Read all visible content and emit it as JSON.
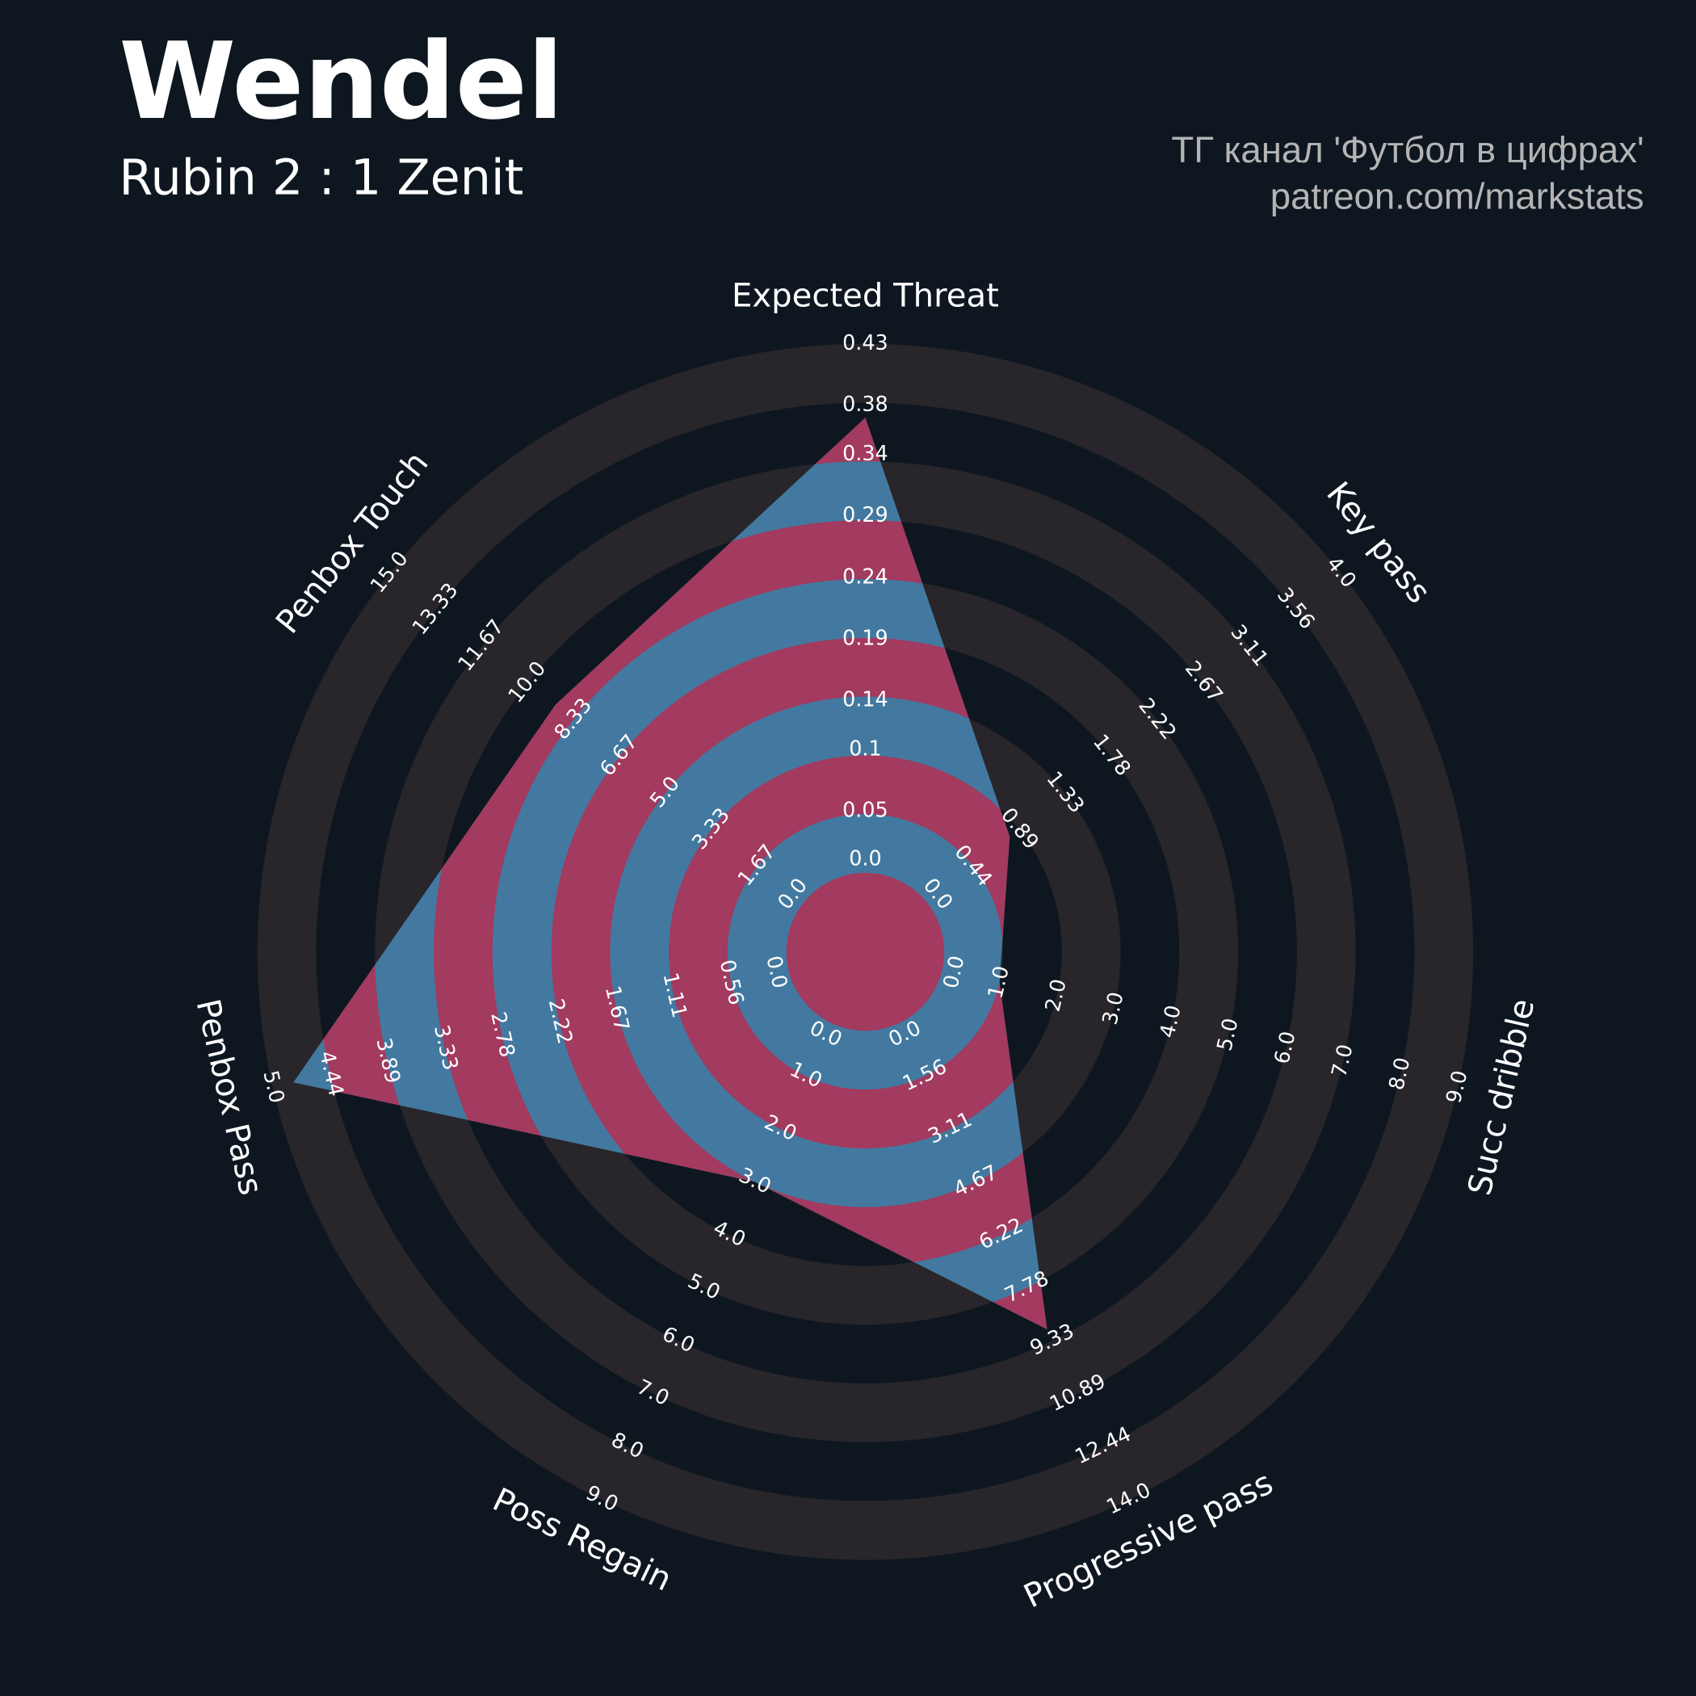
{
  "chart_data": {
    "type": "radar",
    "title": "Wendel",
    "subtitle": "Rubin 2 : 1 Zenit",
    "annotations": [
      "ТГ канал 'Футбол в цифрах'",
      "patreon.com/markstats"
    ],
    "categories": [
      "Expected Threat",
      "Key pass",
      "Succ dribble",
      "Progressive pass",
      "Poss Regain",
      "Penbox Pass",
      "Penbox Touch"
    ],
    "values": [
      0.37,
      0.8,
      1,
      9,
      3,
      4.8,
      9
    ],
    "ranges": [
      [
        0,
        0.43
      ],
      [
        0,
        4
      ],
      [
        0,
        9
      ],
      [
        0,
        14
      ],
      [
        0,
        9
      ],
      [
        0,
        5
      ],
      [
        0,
        15
      ]
    ],
    "ticks": [
      [
        {
          "value": 0,
          "label": "0.0"
        },
        0.05,
        0.1,
        0.14,
        0.19,
        0.24,
        0.29,
        0.34,
        0.38,
        0.43
      ],
      [
        {
          "value": 0,
          "label": "0.0"
        },
        0.44,
        0.89,
        1.33,
        1.78,
        2.22,
        2.67,
        3.11,
        3.56,
        {
          "value": 4,
          "label": "4.0"
        }
      ],
      [
        {
          "value": 0,
          "label": "0.0"
        },
        {
          "value": 1,
          "label": "1.0"
        },
        {
          "value": 2,
          "label": "2.0"
        },
        {
          "value": 3,
          "label": "3.0"
        },
        {
          "value": 4,
          "label": "4.0"
        },
        {
          "value": 5,
          "label": "5.0"
        },
        {
          "value": 6,
          "label": "6.0"
        },
        {
          "value": 7,
          "label": "7.0"
        },
        {
          "value": 8,
          "label": "8.0"
        },
        {
          "value": 9,
          "label": "9.0"
        }
      ],
      [
        {
          "value": 0,
          "label": "0.0"
        },
        1.56,
        3.11,
        4.67,
        6.22,
        7.78,
        9.33,
        10.89,
        12.44,
        {
          "value": 14,
          "label": "14.0"
        }
      ],
      [
        {
          "value": 0,
          "label": "0.0"
        },
        {
          "value": 1,
          "label": "1.0"
        },
        {
          "value": 2,
          "label": "2.0"
        },
        {
          "value": 3,
          "label": "3.0"
        },
        {
          "value": 4,
          "label": "4.0"
        },
        {
          "value": 5,
          "label": "5.0"
        },
        {
          "value": 6,
          "label": "6.0"
        },
        {
          "value": 7,
          "label": "7.0"
        },
        {
          "value": 8,
          "label": "8.0"
        },
        {
          "value": 9,
          "label": "9.0"
        }
      ],
      [
        {
          "value": 0,
          "label": "0.0"
        },
        0.56,
        1.11,
        1.67,
        2.22,
        2.78,
        3.33,
        3.89,
        4.44,
        {
          "value": 5,
          "label": "5.0"
        }
      ],
      [
        {
          "value": 0,
          "label": "0.0"
        },
        1.67,
        3.33,
        {
          "value": 5,
          "label": "5.0"
        },
        6.67,
        8.33,
        {
          "value": 10,
          "label": "10.0"
        },
        11.67,
        13.33,
        {
          "value": 15,
          "label": "15.0"
        }
      ]
    ],
    "colors": {
      "fill": "#4379a0",
      "alt_fill": "#a33a5f",
      "ring": "#28252b",
      "background": "#0e1720"
    }
  }
}
